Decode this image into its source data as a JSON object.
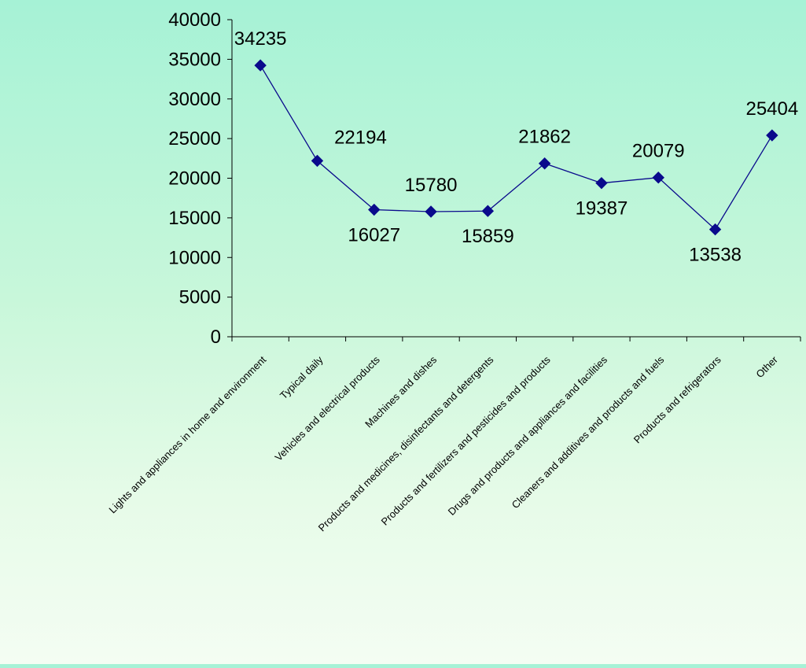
{
  "chart_data": {
    "type": "line",
    "title": "",
    "xlabel": "",
    "ylabel": "",
    "ylim": [
      0,
      40000
    ],
    "yticks": [
      0,
      5000,
      10000,
      15000,
      20000,
      25000,
      30000,
      35000,
      40000
    ],
    "grid": false,
    "legend": "none",
    "categories": [
      "Lights and appliances in home and environment",
      "Typical daily",
      "Vehicles and electrical products",
      "Machines and dishes",
      "Products and medicines, disinfectants and detergents",
      "Products and fertilizers and pesticides and products",
      "Drugs and products and appliances and facilities",
      "Cleaners and additives and products and fuels",
      "Products and refrigerators",
      "Other"
    ],
    "series": [
      {
        "values": [
          34235,
          22194,
          16027,
          15780,
          15859,
          21862,
          19387,
          20079,
          13538,
          25404
        ],
        "color": "#0a0a8c",
        "marker": "diamond"
      }
    ],
    "data_label_positions": [
      "above",
      "above-left",
      "below",
      "above",
      "below",
      "above",
      "below",
      "above",
      "below",
      "above"
    ]
  }
}
